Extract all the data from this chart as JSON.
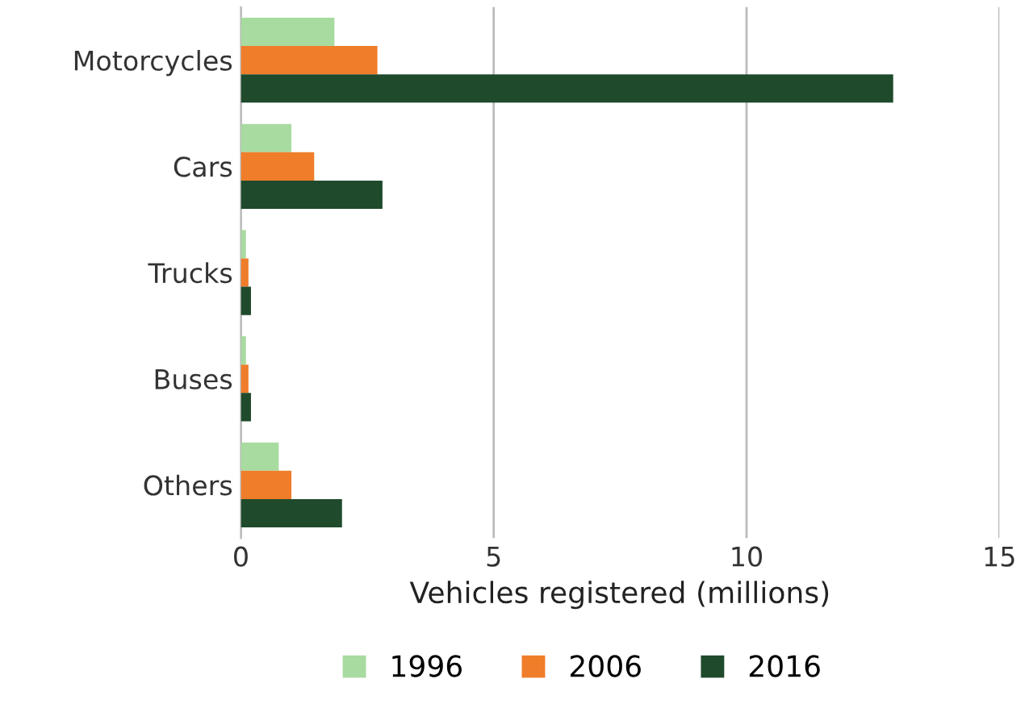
{
  "chart_data": {
    "type": "bar",
    "orientation": "horizontal",
    "xlabel": "Vehicles registered (millions)",
    "categories": [
      "Motorcycles",
      "Cars",
      "Trucks",
      "Buses",
      "Others"
    ],
    "series": [
      {
        "name": "1996",
        "color": "#a8dba0",
        "values": [
          1.85,
          1.0,
          0.1,
          0.1,
          0.75
        ]
      },
      {
        "name": "2006",
        "color": "#ef7d2a",
        "values": [
          2.7,
          1.45,
          0.15,
          0.15,
          1.0
        ]
      },
      {
        "name": "2016",
        "color": "#1f4a2c",
        "values": [
          12.9,
          2.8,
          0.2,
          0.2,
          2.0
        ]
      }
    ],
    "xlim": [
      0,
      15
    ],
    "xticks": [
      0,
      5,
      10,
      15
    ],
    "grid": "x",
    "legend": "bottom"
  }
}
